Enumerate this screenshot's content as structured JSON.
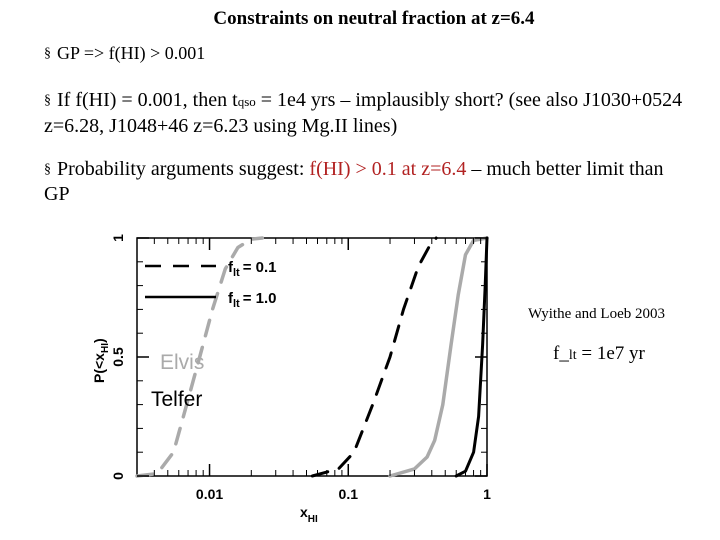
{
  "slide": {
    "title": "Constraints on neutral fraction at z=6.4",
    "bullet_glyph": "§",
    "bullets": [
      {
        "text": "GP => f(HI) > 0.001"
      },
      {
        "pre": "If f(HI) = 0.001, then  t",
        "sub": "qso",
        "post": " = 1e4 yrs – implausibly short? (see also J1030+0524 z=6.28, J1048+46 z=6.23 using Mg.II lines)"
      },
      {
        "pre": "Probability arguments suggest:  ",
        "highlight": "f(HI) > 0.1 at z=6.4",
        "post": " – much better limit than GP"
      }
    ],
    "credit": "Wyithe and Loeb 2003",
    "flt_label": "f_",
    "flt_sub": "lt",
    "flt_value": " =  1e7 yr"
  },
  "chart_data": {
    "type": "line",
    "x_axis": {
      "label_main": "x",
      "label_sub": "HI",
      "scale": "log",
      "range": [
        0.003,
        1
      ],
      "ticks": [
        {
          "value": 0.01,
          "label": "0.01"
        },
        {
          "value": 0.1,
          "label": "0.1"
        },
        {
          "value": 1,
          "label": "1"
        }
      ]
    },
    "y_axis": {
      "label_main": "P(<x",
      "label_sub": "HI",
      "label_end": ")",
      "range": [
        0,
        1
      ],
      "ticks": [
        {
          "value": 0,
          "label": "0"
        },
        {
          "value": 0.5,
          "label": "0.5"
        },
        {
          "value": 1,
          "label": "1"
        }
      ]
    },
    "grid": false,
    "legend": {
      "placement": "top-left",
      "entries": [
        {
          "main": "f",
          "sub": "lt",
          "value": "= 0.1",
          "style": "dashed"
        },
        {
          "main": "f",
          "sub": "lt",
          "value": "= 1.0",
          "style": "solid"
        }
      ]
    },
    "annotations": [
      {
        "text": "Elvis",
        "color": "#aaaaaa"
      },
      {
        "text": "Telfer",
        "color": "#000000"
      }
    ],
    "series": [
      {
        "color": "#aaaaaa",
        "style": "dashed",
        "points": [
          [
            0.003,
            0
          ],
          [
            0.0042,
            0.01
          ],
          [
            0.0055,
            0.1
          ],
          [
            0.007,
            0.32
          ],
          [
            0.0085,
            0.5
          ],
          [
            0.0105,
            0.7
          ],
          [
            0.013,
            0.87
          ],
          [
            0.016,
            0.96
          ],
          [
            0.02,
            0.995
          ],
          [
            0.024,
            1
          ]
        ]
      },
      {
        "color": "#000000",
        "style": "dashed",
        "points": [
          [
            0.055,
            0
          ],
          [
            0.085,
            0.03
          ],
          [
            0.11,
            0.1
          ],
          [
            0.15,
            0.3
          ],
          [
            0.2,
            0.5
          ],
          [
            0.25,
            0.7
          ],
          [
            0.32,
            0.88
          ],
          [
            0.38,
            0.96
          ],
          [
            0.43,
            1
          ]
        ]
      },
      {
        "color": "#aaaaaa",
        "style": "solid",
        "points": [
          [
            0.2,
            0
          ],
          [
            0.3,
            0.03
          ],
          [
            0.37,
            0.08
          ],
          [
            0.42,
            0.15
          ],
          [
            0.48,
            0.3
          ],
          [
            0.55,
            0.55
          ],
          [
            0.62,
            0.76
          ],
          [
            0.7,
            0.93
          ],
          [
            0.8,
            0.99
          ],
          [
            1,
            1
          ]
        ]
      },
      {
        "color": "#000000",
        "style": "solid",
        "points": [
          [
            0.6,
            0
          ],
          [
            0.7,
            0.02
          ],
          [
            0.8,
            0.1
          ],
          [
            0.87,
            0.25
          ],
          [
            0.93,
            0.55
          ],
          [
            0.97,
            0.8
          ],
          [
            1,
            1
          ]
        ]
      }
    ]
  }
}
